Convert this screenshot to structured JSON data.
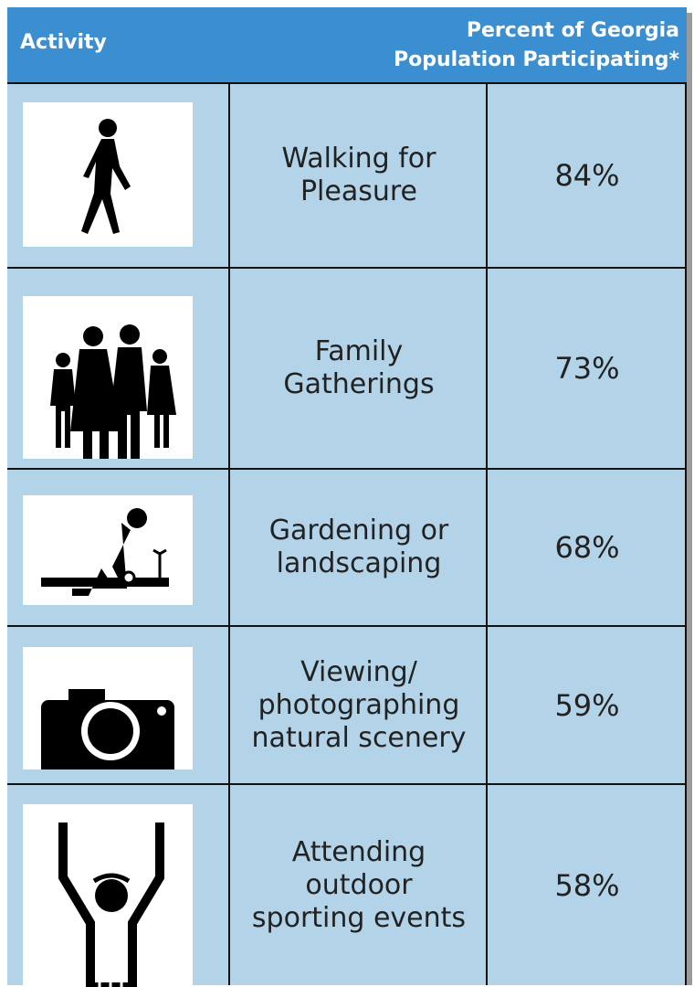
{
  "header": {
    "columns": [
      "Activity",
      "Percent of Georgia Population Participating*"
    ]
  },
  "table": {
    "rows": [
      {
        "activity": [
          "Walking for",
          "Pleasure"
        ],
        "percent": "84%"
      },
      {
        "activity": [
          "Family",
          "Gatherings"
        ],
        "percent": "73%"
      },
      {
        "activity": [
          "Gardening or",
          "landscaping"
        ],
        "percent": "68%"
      },
      {
        "activity": [
          "Viewing/",
          "photographing",
          "natural scenery"
        ],
        "percent": "59%"
      },
      {
        "activity": [
          "Attending",
          "outdoor",
          "sporting events"
        ],
        "percent": "58%"
      }
    ]
  }
}
